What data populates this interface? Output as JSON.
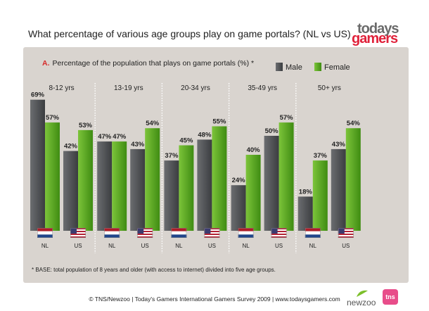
{
  "title": "What percentage of various age groups play on game portals? (NL vs US)",
  "logo": {
    "line1": "todays",
    "line2": "gamers"
  },
  "panel": {
    "letter": "A.",
    "subtitle": "Percentage of the population that plays on game portals (%) *"
  },
  "legend": [
    {
      "name": "Male",
      "color": "#4d4f52"
    },
    {
      "name": "Female",
      "color": "#5aa81e"
    }
  ],
  "chart_data": {
    "type": "bar",
    "title": "Percentage of the population that plays on game portals (%) *",
    "groups": [
      {
        "name": "8-12 yrs",
        "bars": [
          {
            "country": "NL",
            "male": 69,
            "female": 57
          },
          {
            "country": "US",
            "male": 42,
            "female": 53
          }
        ]
      },
      {
        "name": "13-19 yrs",
        "bars": [
          {
            "country": "NL",
            "male": 47,
            "female": 47
          },
          {
            "country": "US",
            "male": 43,
            "female": 54
          }
        ]
      },
      {
        "name": "20-34 yrs",
        "bars": [
          {
            "country": "NL",
            "male": 37,
            "female": 45
          },
          {
            "country": "US",
            "male": 48,
            "female": 55
          }
        ]
      },
      {
        "name": "35-49 yrs",
        "bars": [
          {
            "country": "NL",
            "male": 24,
            "female": 40
          },
          {
            "country": "US",
            "male": 50,
            "female": 57
          }
        ]
      },
      {
        "name": "50+ yrs",
        "bars": [
          {
            "country": "NL",
            "male": 18,
            "female": 37
          },
          {
            "country": "US",
            "male": 43,
            "female": 54
          }
        ]
      }
    ],
    "series": [
      {
        "name": "Male"
      },
      {
        "name": "Female"
      }
    ],
    "value_suffix": "%",
    "ylim": [
      0,
      80
    ],
    "grid": false,
    "legend_position": "top-right"
  },
  "footnote": "* BASE: total population of 8 years and older (with access to internet) divided into five age groups.",
  "footer": "© TNS/Newzoo | Today's Gamers International Gamers Survey 2009 | www.todaysgamers.com",
  "partner_logos": {
    "newzoo": "newzoo",
    "tns": "tns"
  }
}
